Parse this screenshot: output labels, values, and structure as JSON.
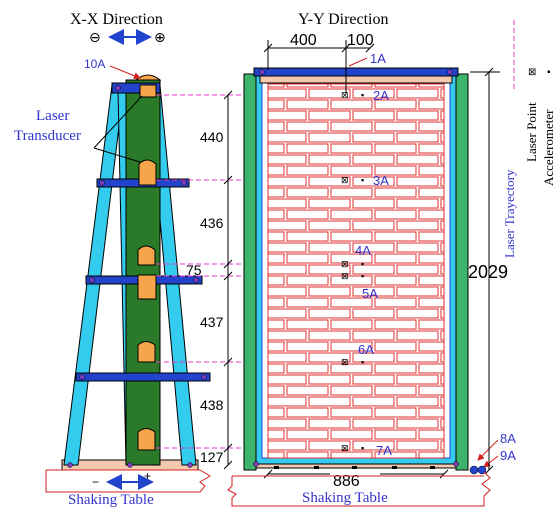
{
  "headings": {
    "xx_direction": "X-X Direction",
    "yy_direction": "Y-Y Direction",
    "minus_sign": "⊖",
    "plus_sign": "⊕"
  },
  "labels": {
    "laser_transducer_line1": "Laser",
    "laser_transducer_line2": "Transducer",
    "shaking_table": "Shaking Table",
    "base_minus": "−",
    "base_plus": "+"
  },
  "points": [
    "10A",
    "1A",
    "2A",
    "3A",
    "4A",
    "5A",
    "6A",
    "7A",
    "8A",
    "9A"
  ],
  "dimensions": {
    "top_width_a": "400",
    "top_width_b": "100",
    "spacing": [
      "440",
      "436",
      "75",
      "437",
      "438",
      "127"
    ],
    "total_height": "2029",
    "base_width": "886"
  },
  "legend": {
    "laser_trajectory": "Laser Trayectory",
    "laser_point": "Laser Point",
    "accelerometer": "Accelerometer",
    "laser_point_symbol": "⊠",
    "accelerometer_symbol": "▪"
  },
  "colors": {
    "frame_cyan": "#33ccee",
    "column_green": "#2a7a2a",
    "side_green": "#3db36b",
    "beam_blue": "#2244cc",
    "brick_red": "#e03030",
    "laser_magenta": "#ee33cc",
    "transducer_orange": "#f7a54a",
    "table_pink": "#f4c9b0",
    "label_blue": "#3333cc",
    "annot_red": "#d02020"
  }
}
